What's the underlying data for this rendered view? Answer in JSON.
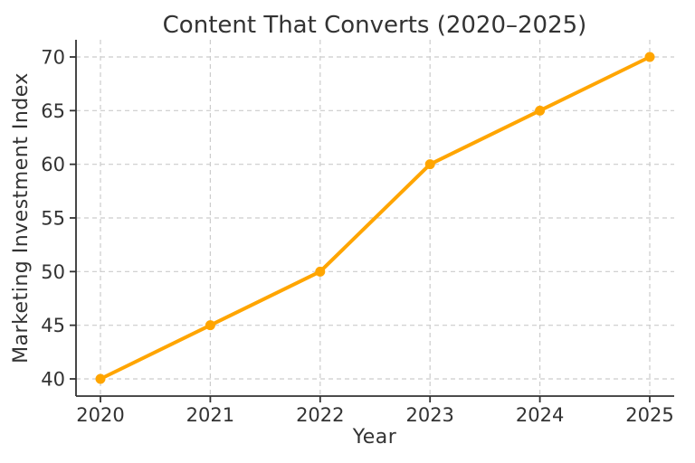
{
  "chart_data": {
    "type": "line",
    "title": "Content That Converts (2020–2025)",
    "xlabel": "Year",
    "ylabel": "Marketing Investment Index",
    "categories": [
      "2020",
      "2021",
      "2022",
      "2023",
      "2024",
      "2025"
    ],
    "series": [
      {
        "name": "Marketing Investment Index",
        "values": [
          40,
          45,
          50,
          60,
          65,
          70
        ],
        "color": "#FFA500",
        "marker": "circle"
      }
    ],
    "ylim": [
      40,
      70
    ],
    "yticks": [
      40,
      45,
      50,
      55,
      60,
      65,
      70
    ],
    "grid": true,
    "grid_style": "dashed",
    "grid_color": "#cccccc",
    "axis_color": "#333333",
    "text_color": "#333333",
    "background": "#ffffff",
    "legend_position": "none",
    "line_width": 4,
    "marker_size": 5.5
  }
}
